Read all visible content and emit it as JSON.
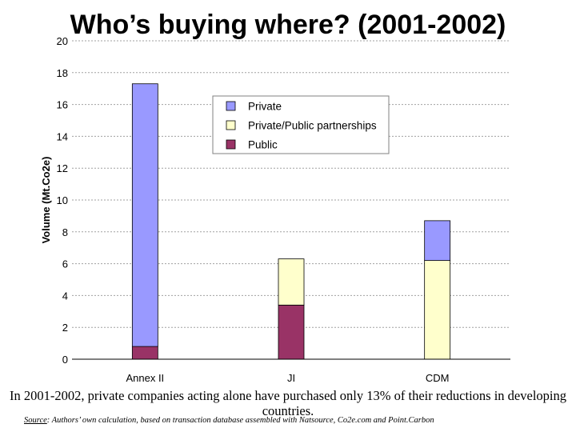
{
  "title": "Who’s buying where? (2001-2002)",
  "caption": "In 2001-2002, private companies acting alone have purchased only 13% of their reductions in developing countries.",
  "source": {
    "label": "Source",
    "text": ": Authors’ own calculation, based on transaction database assembled with Natsource, Co2e.com and Point.Carbon"
  },
  "chart_data": {
    "type": "bar",
    "stacked": true,
    "categories": [
      "Annex II",
      "JI",
      "CDM"
    ],
    "series": [
      {
        "name": "Public",
        "color": "#993366",
        "values": [
          0.8,
          3.4,
          0
        ]
      },
      {
        "name": "Private/Public partnerships",
        "color": "#ffffcc",
        "values": [
          0,
          2.9,
          6.2
        ]
      },
      {
        "name": "Private",
        "color": "#9999ff",
        "values": [
          16.5,
          0,
          2.5
        ]
      }
    ],
    "ylabel": "Volume (Mt.Co2e)",
    "ylim": [
      0,
      20
    ],
    "yticks": [
      0,
      2,
      4,
      6,
      8,
      10,
      12,
      14,
      16,
      18,
      20
    ],
    "legend_order": [
      "Private",
      "Private/Public partnerships",
      "Public"
    ],
    "legend_position": "top-right",
    "grid": true
  }
}
